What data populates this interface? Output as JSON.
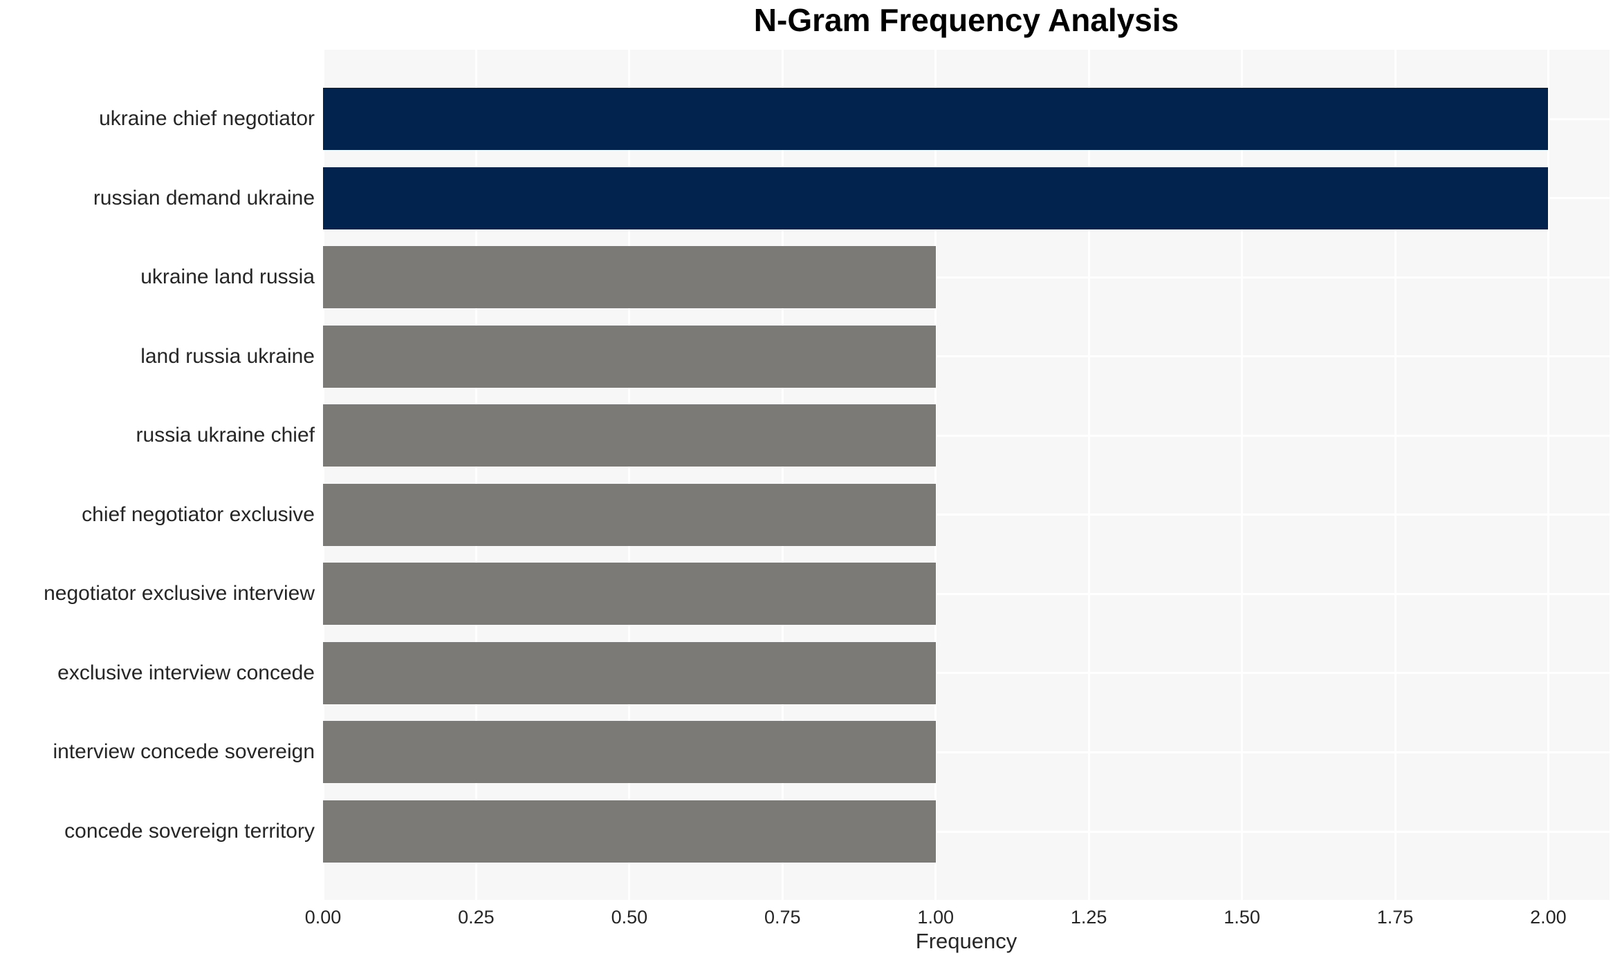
{
  "chart_data": {
    "type": "bar",
    "orientation": "horizontal",
    "title": "N-Gram Frequency Analysis",
    "xlabel": "Frequency",
    "ylabel": "",
    "categories": [
      "ukraine chief negotiator",
      "russian demand ukraine",
      "ukraine land russia",
      "land russia ukraine",
      "russia ukraine chief",
      "chief negotiator exclusive",
      "negotiator exclusive interview",
      "exclusive interview concede",
      "interview concede sovereign",
      "concede sovereign territory"
    ],
    "values": [
      2,
      2,
      1,
      1,
      1,
      1,
      1,
      1,
      1,
      1
    ],
    "xlim": [
      0,
      2.1
    ],
    "xticks": [
      0,
      0.25,
      0.5,
      0.75,
      1.0,
      1.25,
      1.5,
      1.75,
      2.0
    ],
    "xtick_labels": [
      "0.00",
      "0.25",
      "0.50",
      "0.75",
      "1.00",
      "1.25",
      "1.50",
      "1.75",
      "2.00"
    ],
    "grid": true,
    "legend": false,
    "bar_colors": [
      "#02234d",
      "#02234d",
      "#7b7a77",
      "#7b7a77",
      "#7b7a77",
      "#7b7a77",
      "#7b7a77",
      "#7b7a77",
      "#7b7a77",
      "#7b7a77"
    ],
    "colors": {
      "highlight_bar": "#02234d",
      "default_bar": "#7b7a77",
      "plot_background": "#f7f7f7",
      "gridline": "#ffffff",
      "tick_text": "#262626",
      "title_text": "#000000"
    }
  }
}
